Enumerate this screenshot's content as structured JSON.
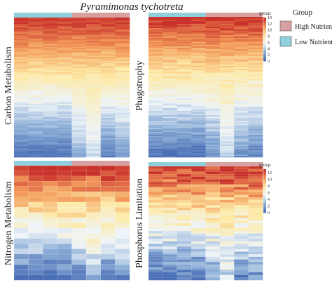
{
  "title": "Pyramimonas tychotreta",
  "legend": {
    "title": "Group",
    "items": [
      {
        "label": "High Nutrient",
        "color": "#d7a1a1"
      },
      {
        "label": "Low Nutrient",
        "color": "#8fd0dc"
      }
    ]
  },
  "chart_data": [
    {
      "type": "heatmap",
      "title": "Carbon Metabolism",
      "rows": 110,
      "columns": 8,
      "column_groups": [
        "Low Nutrient",
        "Low Nutrient",
        "Low Nutrient",
        "Low Nutrient",
        "High Nutrient",
        "High Nutrient",
        "High Nutrient",
        "High Nutrient"
      ],
      "colorbar": null
    },
    {
      "type": "heatmap",
      "title": "Phagotrophy",
      "rows": 100,
      "columns": 8,
      "column_groups": [
        "Low Nutrient",
        "Low Nutrient",
        "Low Nutrient",
        "Low Nutrient",
        "High Nutrient",
        "High Nutrient",
        "High Nutrient",
        "High Nutrient"
      ],
      "colorbar": {
        "label": "group",
        "ticks": [
          0,
          2,
          4,
          6,
          8,
          10,
          12,
          14
        ],
        "range": [
          0,
          14
        ]
      }
    },
    {
      "type": "heatmap",
      "title": "Nitrogen Metabolism",
      "rows": 22,
      "columns": 8,
      "column_groups": [
        "Low Nutrient",
        "Low Nutrient",
        "Low Nutrient",
        "Low Nutrient",
        "High Nutrient",
        "High Nutrient",
        "High Nutrient",
        "High Nutrient"
      ],
      "colorbar": null
    },
    {
      "type": "heatmap",
      "title": "Phosphorus Limitation",
      "rows": 44,
      "columns": 8,
      "column_groups": [
        "Low Nutrient",
        "Low Nutrient",
        "Low Nutrient",
        "Low Nutrient",
        "High Nutrient",
        "High Nutrient",
        "High Nutrient",
        "High Nutrient"
      ],
      "colorbar": {
        "label": "group",
        "ticks": [
          0,
          2,
          4,
          6,
          8,
          10,
          12
        ],
        "range": [
          0,
          13
        ]
      }
    }
  ],
  "colors": {
    "scale": [
      "#4a6fb5",
      "#8fb0d8",
      "#eef4f8",
      "#fdeaa6",
      "#f39a5a",
      "#c8302a"
    ]
  }
}
